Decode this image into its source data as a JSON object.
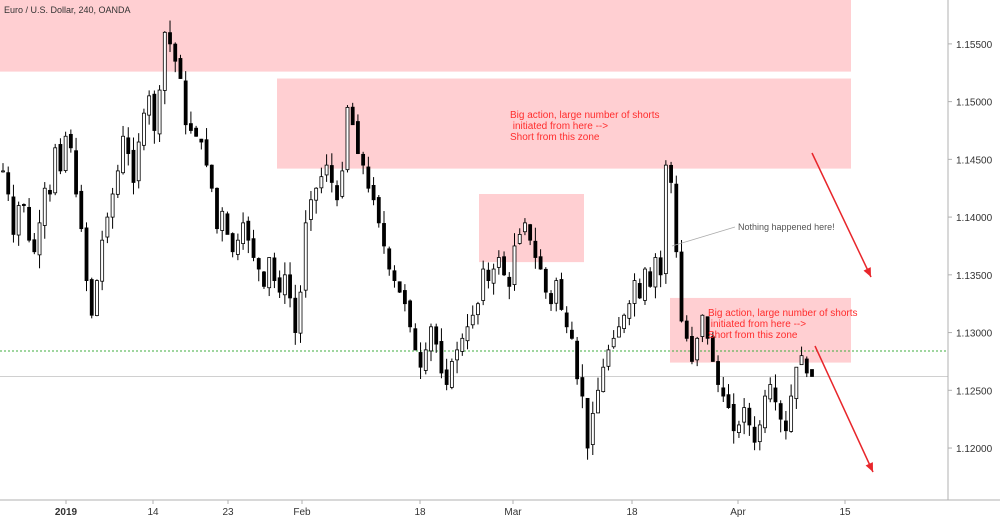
{
  "chart_data": {
    "type": "candlestick",
    "title": "Euro / U.S. Dollar, 240, OANDA",
    "instrument": "EURUSD",
    "timeframe": "240",
    "source": "OANDA",
    "ylim": [
      1.1155,
      1.1588
    ],
    "y_ticks": [
      "1.15500",
      "1.15000",
      "1.14500",
      "1.14000",
      "1.13500",
      "1.13000",
      "1.12500",
      "1.12000"
    ],
    "x_ticks": [
      "2019",
      "14",
      "23",
      "Feb",
      "18",
      "Mar",
      "18",
      "Apr",
      "15"
    ],
    "grid": false,
    "price_line": 1.1284,
    "gray_line": 1.1262,
    "series": [
      {
        "values": [
          1.144,
          1.147,
          1.14,
          1.136,
          1.139,
          1.141,
          1.137,
          1.135,
          1.138,
          1.14,
          1.142,
          1.144,
          1.146,
          1.148,
          1.145,
          1.143,
          1.14,
          1.136,
          1.133,
          1.131,
          1.137,
          1.139,
          1.141,
          1.143,
          1.145,
          1.147,
          1.143,
          1.146,
          1.149,
          1.151,
          1.148,
          1.15,
          1.155,
          1.154,
          1.156,
          1.152,
          1.149,
          1.148,
          1.146,
          1.147,
          1.145,
          1.143,
          1.139,
          1.14,
          1.138,
          1.137,
          1.138,
          1.139,
          1.138,
          1.137,
          1.136,
          1.134,
          1.136,
          1.135,
          1.134,
          1.135,
          1.133,
          1.13,
          1.133,
          1.139,
          1.141,
          1.142,
          1.143,
          1.144,
          1.143,
          1.142,
          1.144,
          1.149,
          1.148,
          1.146,
          1.145,
          1.143,
          1.142,
          1.14,
          1.138,
          1.136,
          1.135,
          1.134,
          1.133,
          1.131,
          1.129,
          1.127,
          1.128,
          1.13,
          1.129,
          1.127,
          1.126,
          1.127,
          1.128,
          1.129,
          1.13,
          1.131,
          1.132,
          1.135,
          1.134,
          1.135,
          1.136,
          1.135,
          1.134,
          1.137,
          1.138,
          1.139,
          1.138,
          1.137,
          1.136,
          1.134,
          1.133,
          1.134,
          1.132,
          1.131,
          1.13,
          1.127,
          1.125,
          1.121,
          1.123,
          1.125,
          1.127,
          1.128,
          1.129,
          1.13,
          1.131,
          1.132,
          1.134,
          1.133,
          1.135,
          1.134,
          1.136,
          1.135,
          1.145,
          1.143,
          1.137,
          1.131,
          1.13,
          1.128,
          1.129,
          1.131,
          1.13,
          1.128,
          1.126,
          1.125,
          1.124,
          1.122,
          1.122,
          1.123,
          1.122,
          1.121,
          1.122,
          1.124,
          1.125,
          1.124,
          1.123,
          1.122,
          1.124,
          1.126,
          1.127,
          1.126
        ]
      },
      {
        "values": [
          1.144,
          1.142,
          1.1385,
          1.141,
          1.141,
          1.138,
          1.137,
          1.1395,
          1.1425,
          1.142,
          1.146,
          1.144,
          1.147,
          1.146,
          1.142,
          1.139,
          1.1345,
          1.1315,
          1.1345,
          1.138,
          1.14,
          1.142,
          1.144,
          1.147,
          1.1455,
          1.143,
          1.1465,
          1.149,
          1.1505,
          1.1475,
          1.151,
          1.156,
          1.155,
          1.1535,
          1.152,
          1.148,
          1.1475,
          1.147,
          1.1465,
          1.1445,
          1.1425,
          1.139,
          1.1405,
          1.1385,
          1.137,
          1.138,
          1.1395,
          1.138,
          1.1365,
          1.1355,
          1.134,
          1.1365,
          1.1345,
          1.1335,
          1.135,
          1.133,
          1.13,
          1.1335,
          1.1395,
          1.1415,
          1.1425,
          1.1435,
          1.1445,
          1.143,
          1.1415,
          1.144,
          1.1495,
          1.148,
          1.1455,
          1.1445,
          1.1425,
          1.1415,
          1.1395,
          1.1375,
          1.1355,
          1.1345,
          1.1335,
          1.1325,
          1.1305,
          1.1285,
          1.127,
          1.1285,
          1.1305,
          1.129,
          1.1265,
          1.1255,
          1.1275,
          1.1285,
          1.1295,
          1.1305,
          1.1315,
          1.1325,
          1.1355,
          1.1345,
          1.1355,
          1.1365,
          1.135,
          1.134,
          1.1375,
          1.1385,
          1.1395,
          1.138,
          1.1365,
          1.1355,
          1.1335,
          1.1325,
          1.1345,
          1.132,
          1.1305,
          1.1295,
          1.126,
          1.1245,
          1.12,
          1.123,
          1.125,
          1.127,
          1.1285,
          1.1295,
          1.1305,
          1.1315,
          1.1325,
          1.1345,
          1.133,
          1.1355,
          1.134,
          1.1365,
          1.135,
          1.1445,
          1.143,
          1.137,
          1.131,
          1.1295,
          1.1275,
          1.1295,
          1.1315,
          1.1295,
          1.1275,
          1.1255,
          1.1245,
          1.1235,
          1.1215,
          1.122,
          1.1235,
          1.122,
          1.1205,
          1.122,
          1.1245,
          1.1255,
          1.124,
          1.1225,
          1.1215,
          1.1245,
          1.127,
          1.128,
          1.1265,
          1.1262
        ]
      }
    ],
    "zones": [
      {
        "top": 1.1588,
        "bottom": 1.1526
      },
      {
        "top": 1.152,
        "bottom": 1.1442
      },
      {
        "top": 1.142,
        "bottom": 1.1361
      },
      {
        "top": 1.133,
        "bottom": 1.1274
      }
    ],
    "annotations": [
      {
        "lines": [
          "Big action, large number of shorts",
          " initiated from here -->",
          "Short from this zone"
        ],
        "color": "#ff2d2d"
      },
      {
        "lines": [
          "Nothing happened here!"
        ],
        "color": "#555555"
      },
      {
        "lines": [
          "Big action, large number of shorts",
          " initiated from here -->",
          "Short from this zone"
        ],
        "color": "#ff2d2d"
      }
    ]
  },
  "colors": {
    "zone_fill": "#ffcfd2",
    "candle": "#000000",
    "arrow": "#e8262b",
    "price_line": "#3fae3f",
    "axis_text": "#333333",
    "axis_line": "#b0b0b0"
  }
}
